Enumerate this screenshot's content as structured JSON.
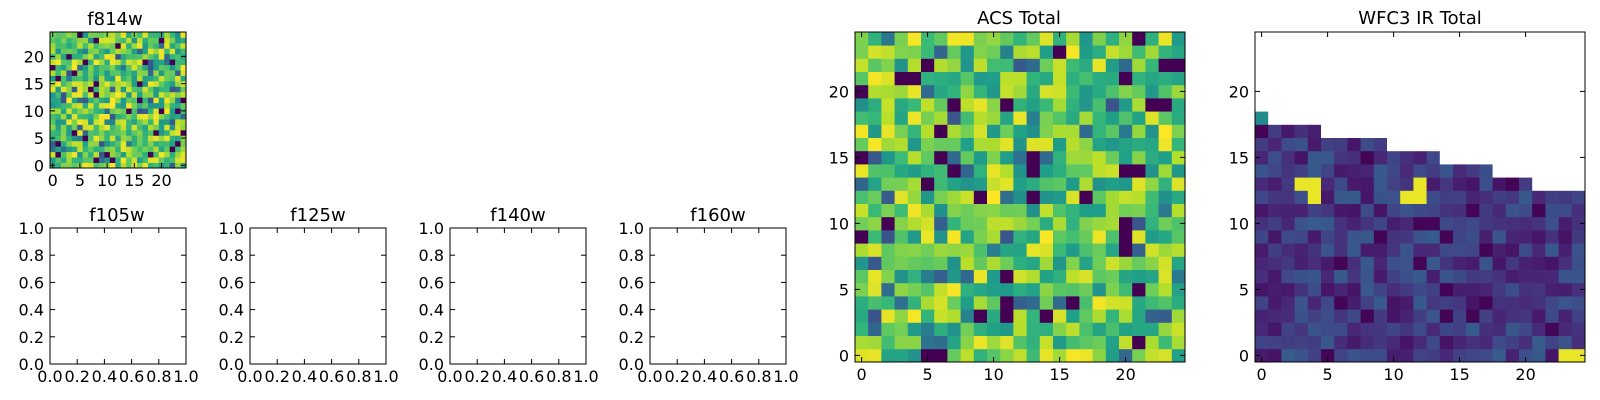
{
  "chart_data": [
    {
      "type": "heatmap",
      "title": "f814w",
      "xticks": [
        "0",
        "5",
        "10",
        "15",
        "20"
      ],
      "yticks": [
        "0",
        "5",
        "10",
        "15",
        "20"
      ],
      "xlim": [
        -0.5,
        24.5
      ],
      "ylim": [
        -0.5,
        24.5
      ],
      "grid_size": [
        25,
        25
      ],
      "seed": 11,
      "mode": "noise",
      "colormap": "viridis"
    },
    {
      "type": "heatmap",
      "title": "f105w",
      "xticks": [
        "0.0",
        "0.2",
        "0.4",
        "0.6",
        "0.8",
        "1.0"
      ],
      "yticks": [
        "0.0",
        "0.2",
        "0.4",
        "0.6",
        "0.8",
        "1.0"
      ],
      "xlim": [
        0,
        1
      ],
      "ylim": [
        0,
        1
      ],
      "empty": true
    },
    {
      "type": "heatmap",
      "title": "f125w",
      "xticks": [
        "0.0",
        "0.2",
        "0.4",
        "0.6",
        "0.8",
        "1.0"
      ],
      "yticks": [
        "0.0",
        "0.2",
        "0.4",
        "0.6",
        "0.8",
        "1.0"
      ],
      "xlim": [
        0,
        1
      ],
      "ylim": [
        0,
        1
      ],
      "empty": true
    },
    {
      "type": "heatmap",
      "title": "f140w",
      "xticks": [
        "0.0",
        "0.2",
        "0.4",
        "0.6",
        "0.8",
        "1.0"
      ],
      "yticks": [
        "0.0",
        "0.2",
        "0.4",
        "0.6",
        "0.8",
        "1.0"
      ],
      "xlim": [
        0,
        1
      ],
      "ylim": [
        0,
        1
      ],
      "empty": true
    },
    {
      "type": "heatmap",
      "title": "f160w",
      "xticks": [
        "0.0",
        "0.2",
        "0.4",
        "0.6",
        "0.8",
        "1.0"
      ],
      "yticks": [
        "0.0",
        "0.2",
        "0.4",
        "0.6",
        "0.8",
        "1.0"
      ],
      "xlim": [
        0,
        1
      ],
      "ylim": [
        0,
        1
      ],
      "empty": true
    },
    {
      "type": "heatmap",
      "title": "ACS Total",
      "xticks": [
        "0",
        "5",
        "10",
        "15",
        "20"
      ],
      "yticks": [
        "0",
        "5",
        "10",
        "15",
        "20"
      ],
      "xlim": [
        -0.5,
        24.5
      ],
      "ylim": [
        -0.5,
        24.5
      ],
      "grid_size": [
        25,
        25
      ],
      "seed": 29,
      "mode": "noise",
      "colormap": "viridis"
    },
    {
      "type": "heatmap",
      "title": "WFC3 IR Total",
      "xticks": [
        "0",
        "5",
        "10",
        "15",
        "20"
      ],
      "yticks": [
        "0",
        "5",
        "10",
        "15",
        "20"
      ],
      "xlim": [
        -0.5,
        24.5
      ],
      "ylim": [
        -0.5,
        24.5
      ],
      "grid_size": [
        25,
        25
      ],
      "seed": 53,
      "mode": "footprint",
      "colormap": "viridis",
      "column_top_row": [
        18,
        17,
        17,
        17,
        17,
        16,
        16,
        16,
        16,
        16,
        15,
        15,
        15,
        15,
        14,
        14,
        14,
        14,
        13,
        13,
        13,
        12,
        12,
        12,
        12
      ],
      "bright_cells": [
        [
          3,
          13
        ],
        [
          4,
          13
        ],
        [
          4,
          12
        ],
        [
          12,
          13
        ],
        [
          12,
          12
        ],
        [
          11,
          12
        ],
        [
          23,
          0
        ],
        [
          24,
          0
        ]
      ],
      "edge_cell": [
        0,
        18
      ]
    }
  ]
}
